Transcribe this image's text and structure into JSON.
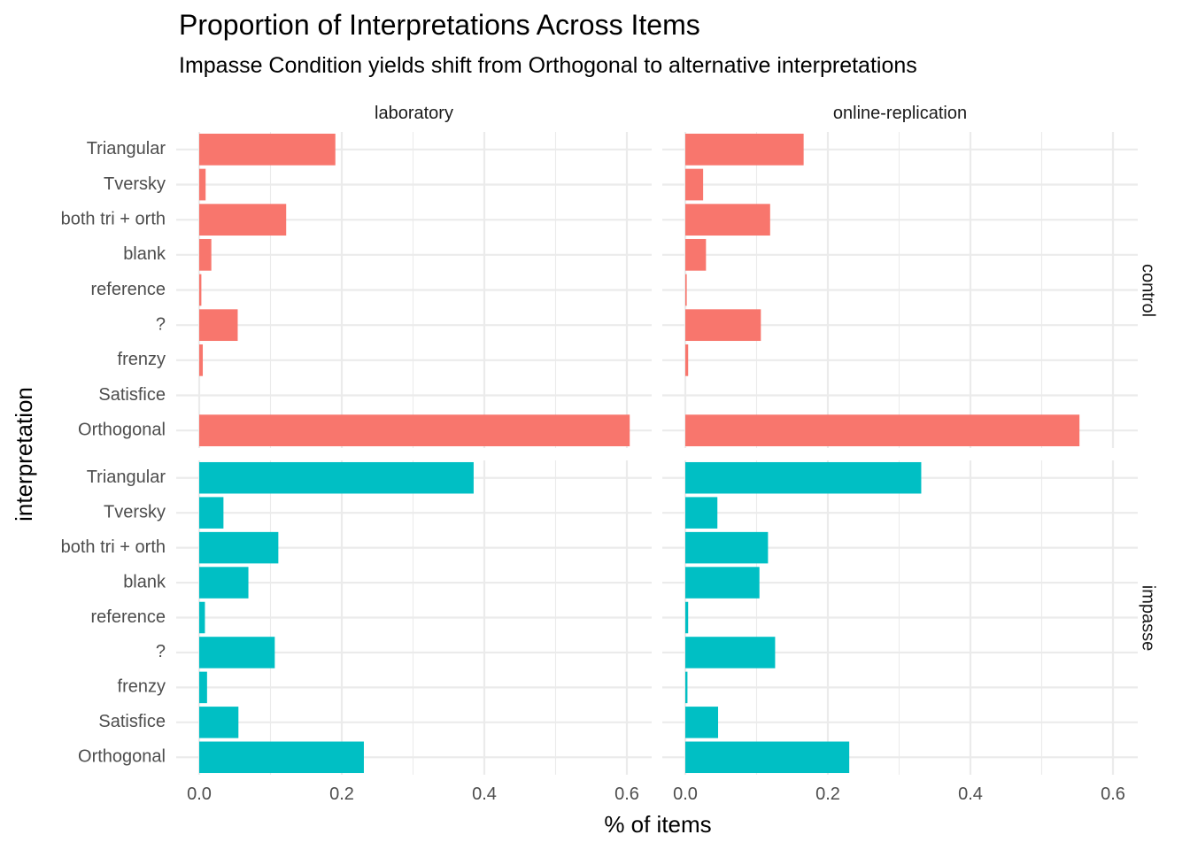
{
  "chart_data": {
    "type": "bar",
    "orientation": "horizontal",
    "title": "Proportion of Interpretations Across Items",
    "subtitle": "Impasse Condition yields shift from Orthogonal to alternative interpretations",
    "xlabel": "% of items",
    "ylabel": "interpretation",
    "xlim": [
      0,
      0.6
    ],
    "x_ticks": [
      "0.0",
      "0.2",
      "0.4",
      "0.6"
    ],
    "categories": [
      "Triangular",
      "Tversky",
      "both tri + orth",
      "blank",
      "reference",
      "?",
      "frenzy",
      "Satisfice",
      "Orthogonal"
    ],
    "facet_columns": [
      "laboratory",
      "online-replication"
    ],
    "facet_rows": [
      "control",
      "impasse"
    ],
    "colors": {
      "control": "#F8766D",
      "impasse": "#00BFC4"
    },
    "panels": [
      {
        "row": "control",
        "col": "laboratory",
        "values": [
          0.191,
          0.009,
          0.122,
          0.017,
          0.003,
          0.054,
          0.005,
          0.0,
          0.604
        ]
      },
      {
        "row": "control",
        "col": "online-replication",
        "values": [
          0.166,
          0.025,
          0.119,
          0.029,
          0.002,
          0.106,
          0.004,
          0.0,
          0.553
        ]
      },
      {
        "row": "impasse",
        "col": "laboratory",
        "values": [
          0.385,
          0.034,
          0.111,
          0.069,
          0.008,
          0.106,
          0.011,
          0.055,
          0.231
        ]
      },
      {
        "row": "impasse",
        "col": "online-replication",
        "values": [
          0.331,
          0.045,
          0.116,
          0.104,
          0.004,
          0.126,
          0.003,
          0.046,
          0.23
        ]
      }
    ],
    "grid": true,
    "legend": "none"
  }
}
